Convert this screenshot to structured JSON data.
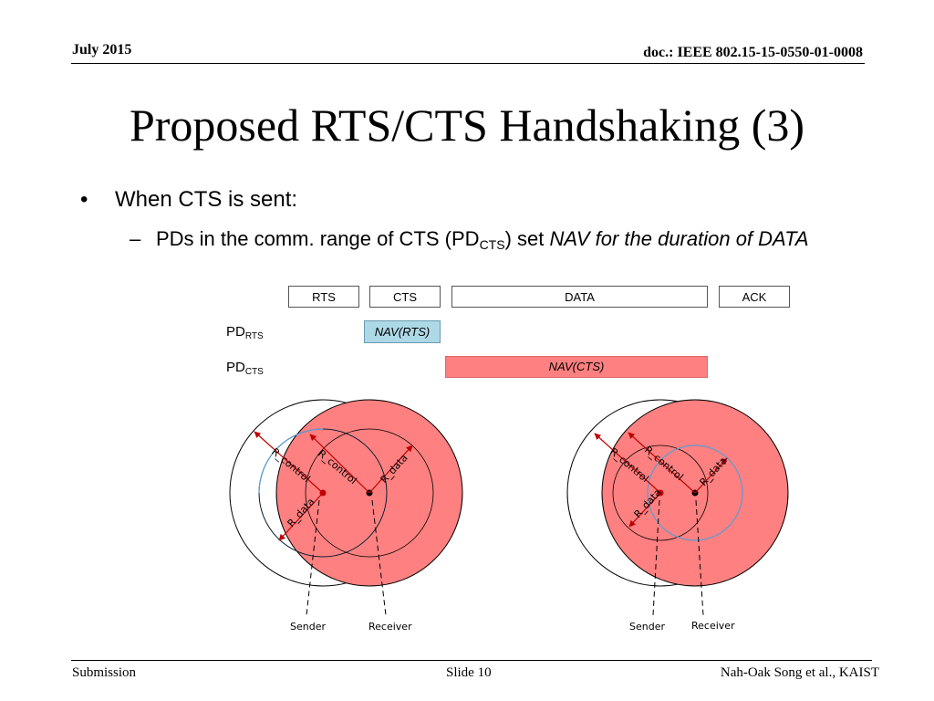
{
  "header": {
    "date": "July 2015",
    "doc_id": "doc.: IEEE 802.15-15-0550-01-0008"
  },
  "title": "Proposed RTS/CTS Handshaking (3)",
  "bullets": {
    "level1": "When CTS is sent:",
    "level2_dash": "–",
    "level2_pre": "PDs in the comm. range of CTS (PD",
    "level2_sub": "CTS",
    "level2_mid": ") set ",
    "level2_italic": "NAV for the duration of DATA"
  },
  "timeline": {
    "frames": [
      "RTS",
      "CTS",
      "DATA",
      "ACK"
    ],
    "rows": [
      {
        "label": "PD",
        "sub": "RTS",
        "nav": "NAV(RTS)",
        "color": "#add8e6"
      },
      {
        "label": "PD",
        "sub": "CTS",
        "nav": "NAV(CTS)",
        "color": "#ff8080"
      }
    ]
  },
  "diagram": {
    "r_control": "R_control",
    "r_data": "R_data",
    "sender": "Sender",
    "receiver": "Receiver",
    "fill_color": "#ff8080",
    "blue_circle": "#5b9bd5"
  },
  "footer": {
    "left": "Submission",
    "center": "Slide 10",
    "right": "Nah-Oak Song et al., KAIST"
  }
}
